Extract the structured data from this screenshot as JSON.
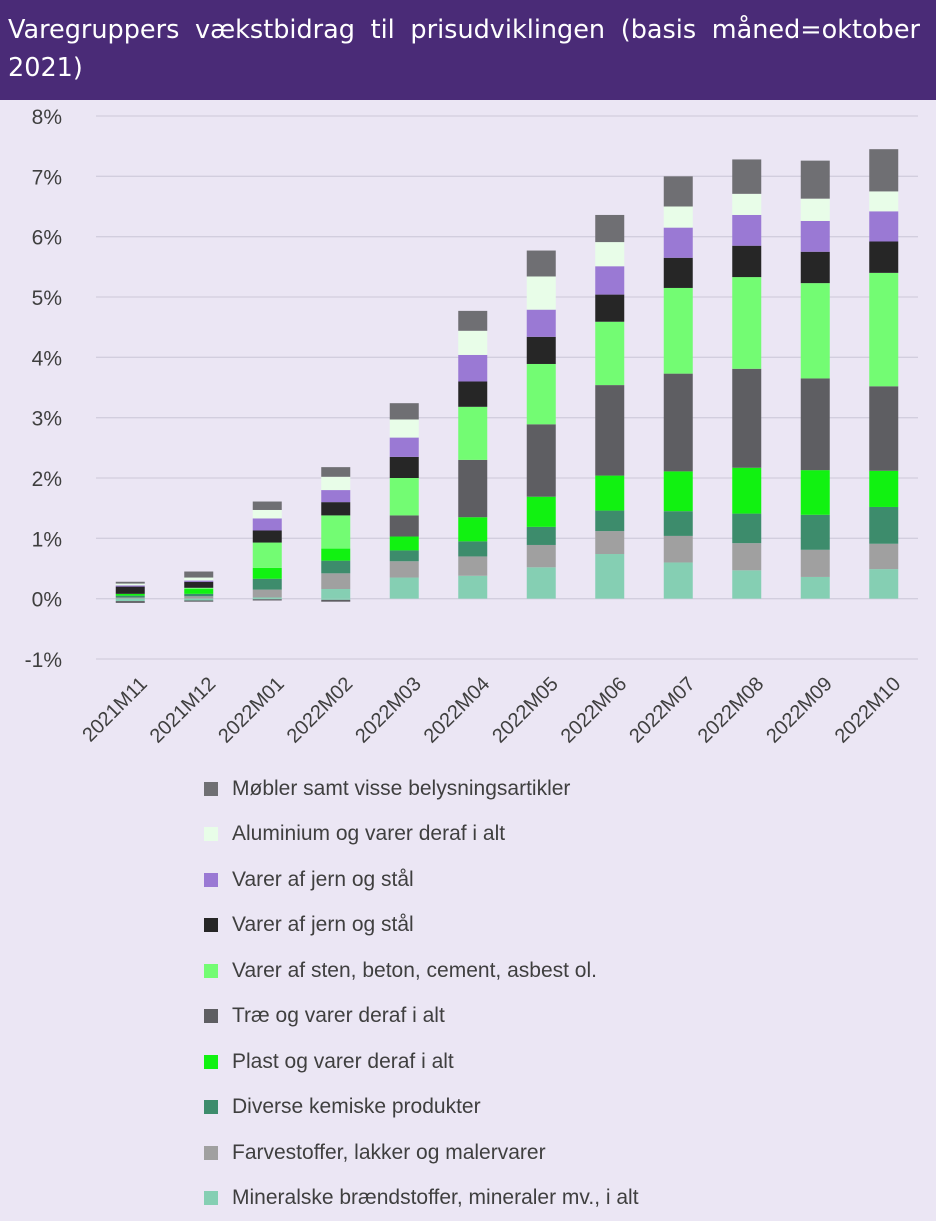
{
  "title": "Varegruppers vækstbidrag til prisudviklingen (basis måned=oktober 2021)",
  "chart_data": {
    "type": "bar",
    "stacked": true,
    "title": "Varegruppers vækstbidrag til prisudviklingen (basis måned=oktober 2021)",
    "xlabel": "",
    "ylabel": "",
    "ylim": [
      -1,
      8
    ],
    "y_ticks": [
      "8%",
      "7%",
      "6%",
      "5%",
      "4%",
      "3%",
      "2%",
      "1%",
      "0%",
      "-1%"
    ],
    "grid": true,
    "legend_position": "bottom",
    "categories": [
      "2021M11",
      "2021M12",
      "2022M01",
      "2022M02",
      "2022M03",
      "2022M04",
      "2022M05",
      "2022M06",
      "2022M07",
      "2022M08",
      "2022M09",
      "2022M10"
    ],
    "series": [
      {
        "name": "Mineralske brændstoffer, mineraler mv., i alt",
        "color": "#85cfb3",
        "values": [
          0.0,
          0.0,
          0.02,
          0.16,
          0.35,
          0.38,
          0.52,
          0.74,
          0.6,
          0.47,
          0.36,
          0.49
        ]
      },
      {
        "name": "Farvestoffer, lakker og malervarer",
        "color": "#a0a0a0",
        "values": [
          0.02,
          0.04,
          0.13,
          0.26,
          0.27,
          0.32,
          0.37,
          0.38,
          0.44,
          0.45,
          0.45,
          0.42
        ]
      },
      {
        "name": "Diverse kemiske produkter",
        "color": "#3d8c6c",
        "values": [
          0.03,
          0.04,
          0.18,
          0.21,
          0.18,
          0.25,
          0.3,
          0.34,
          0.41,
          0.49,
          0.58,
          0.61
        ]
      },
      {
        "name": "Plast og varer deraf i alt",
        "color": "#11f211",
        "values": [
          0.03,
          0.08,
          0.18,
          0.2,
          0.23,
          0.4,
          0.5,
          0.58,
          0.66,
          0.76,
          0.74,
          0.6
        ]
      },
      {
        "name": "Træ og varer deraf i alt",
        "color": "#5e5e62",
        "values": [
          0.0,
          0.0,
          0.0,
          0.0,
          0.35,
          0.95,
          1.2,
          1.5,
          1.62,
          1.64,
          1.52,
          1.4
        ]
      },
      {
        "name": "Varer af sten, beton, cement, asbest ol.",
        "color": "#73fc73",
        "values": [
          0.0,
          0.02,
          0.42,
          0.55,
          0.62,
          0.88,
          1.0,
          1.05,
          1.42,
          1.52,
          1.58,
          1.88
        ]
      },
      {
        "name": "Varer af jern og stål",
        "color": "#262626",
        "values": [
          0.12,
          0.1,
          0.2,
          0.22,
          0.35,
          0.42,
          0.45,
          0.45,
          0.5,
          0.52,
          0.52,
          0.52
        ]
      },
      {
        "name": "Varer af jern og stål",
        "color": "#9a79d4",
        "values": [
          0.02,
          0.02,
          0.2,
          0.2,
          0.32,
          0.44,
          0.45,
          0.47,
          0.5,
          0.51,
          0.51,
          0.5
        ]
      },
      {
        "name": "Aluminium og varer deraf i alt",
        "color": "#e8fde8",
        "values": [
          0.03,
          0.05,
          0.14,
          0.22,
          0.3,
          0.4,
          0.55,
          0.4,
          0.35,
          0.35,
          0.37,
          0.33
        ]
      },
      {
        "name": "Møbler samt visse belysningsartikler",
        "color": "#6f6f73",
        "values": [
          0.03,
          0.1,
          0.14,
          0.16,
          0.27,
          0.33,
          0.43,
          0.45,
          0.5,
          0.57,
          0.63,
          0.7
        ]
      }
    ],
    "negative_parts": [
      {
        "series": "Træ og varer deraf i alt",
        "values": [
          -0.03,
          -0.02,
          -0.02,
          -0.03,
          0,
          0,
          0,
          0,
          0,
          0,
          0,
          0
        ]
      },
      {
        "series": "Mineralske brændstoffer, mineraler mv., i alt",
        "values": [
          -0.04,
          -0.03,
          -0.01,
          -0.02,
          0,
          0,
          0,
          0,
          0,
          0,
          0,
          0
        ]
      }
    ]
  }
}
